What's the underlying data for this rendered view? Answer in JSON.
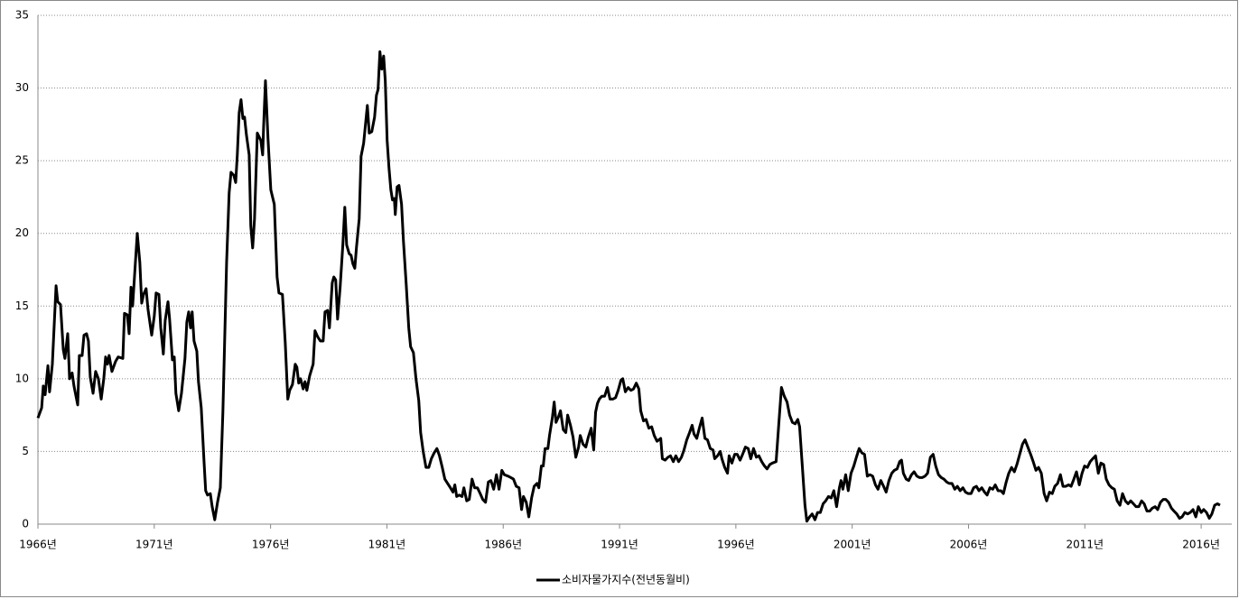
{
  "chart_data": {
    "type": "line",
    "x": [
      1966.0,
      1966.16,
      1966.23,
      1966.31,
      1966.43,
      1966.5,
      1966.62,
      1966.78,
      1966.85,
      1966.97,
      1967.09,
      1967.16,
      1967.28,
      1967.36,
      1967.47,
      1967.55,
      1967.71,
      1967.78,
      1967.9,
      1967.98,
      1968.09,
      1968.17,
      1968.25,
      1968.37,
      1968.48,
      1968.6,
      1968.72,
      1968.83,
      1968.91,
      1968.99,
      1969.06,
      1969.18,
      1969.34,
      1969.45,
      1969.65,
      1969.72,
      1969.84,
      1969.92,
      1970.0,
      1970.07,
      1970.15,
      1970.27,
      1970.38,
      1970.46,
      1970.54,
      1970.65,
      1970.73,
      1970.89,
      1971.0,
      1971.08,
      1971.2,
      1971.28,
      1971.39,
      1971.47,
      1971.59,
      1971.66,
      1971.78,
      1971.86,
      1971.93,
      1972.05,
      1972.17,
      1972.32,
      1972.4,
      1972.48,
      1972.56,
      1972.63,
      1972.71,
      1972.83,
      1972.9,
      1973.02,
      1973.14,
      1973.21,
      1973.29,
      1973.41,
      1973.49,
      1973.6,
      1973.72,
      1973.84,
      1973.95,
      1974.11,
      1974.22,
      1974.3,
      1974.42,
      1974.5,
      1974.57,
      1974.65,
      1974.73,
      1974.81,
      1974.88,
      1974.96,
      1975.08,
      1975.15,
      1975.23,
      1975.31,
      1975.43,
      1975.58,
      1975.66,
      1975.7,
      1975.78,
      1975.89,
      1976.01,
      1976.16,
      1976.28,
      1976.36,
      1976.51,
      1976.63,
      1976.74,
      1976.82,
      1976.94,
      1977.06,
      1977.13,
      1977.21,
      1977.29,
      1977.4,
      1977.48,
      1977.56,
      1977.68,
      1977.83,
      1977.91,
      1978.02,
      1978.14,
      1978.26,
      1978.34,
      1978.45,
      1978.53,
      1978.65,
      1978.72,
      1978.8,
      1978.88,
      1978.99,
      1979.11,
      1979.19,
      1979.27,
      1979.38,
      1979.46,
      1979.54,
      1979.62,
      1979.69,
      1979.81,
      1979.89,
      1980.0,
      1980.08,
      1980.16,
      1980.24,
      1980.35,
      1980.47,
      1980.55,
      1980.62,
      1980.7,
      1980.78,
      1980.86,
      1980.93,
      1981.01,
      1981.09,
      1981.17,
      1981.24,
      1981.32,
      1981.36,
      1981.44,
      1981.52,
      1981.63,
      1981.71,
      1981.83,
      1981.94,
      1982.02,
      1982.14,
      1982.25,
      1982.37,
      1982.45,
      1982.56,
      1982.68,
      1982.8,
      1982.91,
      1983.03,
      1983.15,
      1983.26,
      1983.38,
      1983.49,
      1983.61,
      1983.73,
      1983.84,
      1983.92,
      1984.0,
      1984.11,
      1984.23,
      1984.31,
      1984.43,
      1984.54,
      1984.66,
      1984.77,
      1984.89,
      1985.01,
      1985.12,
      1985.24,
      1985.36,
      1985.47,
      1985.59,
      1985.71,
      1985.82,
      1985.94,
      1986.05,
      1986.21,
      1986.33,
      1986.44,
      1986.56,
      1986.68,
      1986.79,
      1986.87,
      1986.99,
      1987.1,
      1987.22,
      1987.33,
      1987.45,
      1987.53,
      1987.64,
      1987.72,
      1987.8,
      1987.92,
      1987.99,
      1988.11,
      1988.19,
      1988.27,
      1988.38,
      1988.46,
      1988.58,
      1988.69,
      1988.77,
      1988.89,
      1989.0,
      1989.12,
      1989.24,
      1989.31,
      1989.43,
      1989.55,
      1989.66,
      1989.78,
      1989.89,
      1989.97,
      1990.05,
      1990.13,
      1990.24,
      1990.36,
      1990.48,
      1990.59,
      1990.71,
      1990.83,
      1990.94,
      1991.06,
      1991.14,
      1991.25,
      1991.37,
      1991.49,
      1991.6,
      1991.72,
      1991.83,
      1991.91,
      1992.03,
      1992.14,
      1992.26,
      1992.38,
      1992.49,
      1992.61,
      1992.77,
      1992.84,
      1992.96,
      1993.08,
      1993.19,
      1993.31,
      1993.42,
      1993.54,
      1993.66,
      1993.77,
      1993.89,
      1994.01,
      1994.12,
      1994.2,
      1994.32,
      1994.43,
      1994.55,
      1994.67,
      1994.78,
      1994.9,
      1995.02,
      1995.09,
      1995.21,
      1995.33,
      1995.4,
      1995.52,
      1995.64,
      1995.71,
      1995.83,
      1995.95,
      1996.06,
      1996.18,
      1996.29,
      1996.41,
      1996.53,
      1996.64,
      1996.76,
      1996.88,
      1996.99,
      1997.11,
      1997.23,
      1997.34,
      1997.46,
      1997.57,
      1997.73,
      1997.85,
      1997.96,
      1998.08,
      1998.2,
      1998.31,
      1998.43,
      1998.55,
      1998.66,
      1998.74,
      1998.86,
      1998.97,
      1999.05,
      1999.17,
      1999.28,
      1999.4,
      1999.51,
      1999.63,
      1999.75,
      1999.86,
      1999.98,
      2000.1,
      2000.21,
      2000.33,
      2000.45,
      2000.52,
      2000.6,
      2000.72,
      2000.83,
      2000.95,
      2001.07,
      2001.18,
      2001.3,
      2001.42,
      2001.53,
      2001.65,
      2001.76,
      2001.88,
      2002.0,
      2002.11,
      2002.23,
      2002.35,
      2002.46,
      2002.58,
      2002.7,
      2002.81,
      2002.93,
      2003.04,
      2003.12,
      2003.2,
      2003.32,
      2003.43,
      2003.55,
      2003.66,
      2003.78,
      2003.9,
      2004.01,
      2004.13,
      2004.24,
      2004.36,
      2004.48,
      2004.59,
      2004.71,
      2004.83,
      2004.94,
      2005.06,
      2005.17,
      2005.29,
      2005.41,
      2005.52,
      2005.64,
      2005.76,
      2005.87,
      2005.99,
      2006.11,
      2006.22,
      2006.34,
      2006.45,
      2006.57,
      2006.69,
      2006.8,
      2006.92,
      2007.04,
      2007.15,
      2007.27,
      2007.39,
      2007.5,
      2007.62,
      2007.73,
      2007.85,
      2007.97,
      2008.08,
      2008.2,
      2008.32,
      2008.43,
      2008.55,
      2008.67,
      2008.78,
      2008.9,
      2009.01,
      2009.13,
      2009.25,
      2009.36,
      2009.48,
      2009.6,
      2009.71,
      2009.83,
      2009.95,
      2010.06,
      2010.18,
      2010.3,
      2010.41,
      2010.53,
      2010.64,
      2010.76,
      2010.88,
      2010.99,
      2011.11,
      2011.23,
      2011.34,
      2011.46,
      2011.58,
      2011.69,
      2011.81,
      2011.92,
      2012.04,
      2012.16,
      2012.27,
      2012.39,
      2012.51,
      2012.62,
      2012.74,
      2012.86,
      2012.97,
      2013.09,
      2013.2,
      2013.32,
      2013.44,
      2013.55,
      2013.67,
      2013.79,
      2013.9,
      2014.02,
      2014.13,
      2014.25,
      2014.37,
      2014.48,
      2014.6,
      2014.72,
      2014.83,
      2014.95,
      2015.07,
      2015.18,
      2015.3,
      2015.42,
      2015.53,
      2015.65,
      2015.77,
      2015.88,
      2016.0,
      2016.11,
      2016.23,
      2016.35,
      2016.46,
      2016.58,
      2016.7,
      2016.81
    ],
    "series": [
      {
        "name": "소비자물가지수(전년동월비)",
        "color": "#000000",
        "values": [
          7.3,
          8,
          9.5,
          8.9,
          10.9,
          9.1,
          11,
          16.4,
          15.3,
          15.1,
          12,
          11.4,
          13.1,
          10,
          10.4,
          9.5,
          8.2,
          11.6,
          11.6,
          13,
          13.1,
          12.6,
          10.1,
          9,
          10.5,
          10,
          8.6,
          10,
          11.5,
          11,
          11.6,
          10.5,
          11.2,
          11.5,
          11.4,
          14.5,
          14.4,
          13.1,
          16.3,
          15,
          17,
          20,
          18,
          15.2,
          15.8,
          16.2,
          14.8,
          13,
          14.3,
          15.9,
          15.8,
          13.5,
          11.7,
          14,
          15.3,
          14.1,
          11.3,
          11.5,
          9,
          7.8,
          9,
          11.4,
          13.9,
          14.6,
          13.5,
          14.6,
          12.6,
          11.9,
          9.8,
          8,
          4.3,
          2.3,
          2,
          2.1,
          1.2,
          0.3,
          1.5,
          2.5,
          7.7,
          18,
          22.8,
          24.2,
          24,
          23.5,
          25.4,
          28.3,
          29.2,
          27.9,
          28,
          26.8,
          25.4,
          20.5,
          19,
          21,
          26.9,
          26.4,
          25.4,
          27.3,
          30.5,
          26.5,
          23,
          22,
          17,
          15.9,
          15.8,
          12.5,
          8.6,
          9.2,
          9.6,
          11,
          10.8,
          9.7,
          10,
          9.3,
          9.8,
          9.2,
          10.2,
          11,
          13.3,
          12.9,
          12.6,
          12.6,
          14.6,
          14.7,
          13.5,
          16.6,
          17,
          16.8,
          14.1,
          16.3,
          19.3,
          21.8,
          19.2,
          18.6,
          18.5,
          17.9,
          17.6,
          19,
          21,
          25.3,
          26.2,
          27.5,
          28.8,
          26.9,
          27,
          28,
          29.5,
          29.9,
          32.5,
          31.3,
          32.2,
          30.5,
          26.4,
          24.5,
          23,
          22.3,
          22.4,
          21.3,
          23.2,
          23.3,
          22,
          19.5,
          16.5,
          13.5,
          12.2,
          11.8,
          10,
          8.5,
          6.3,
          5,
          3.9,
          3.9,
          4.5,
          4.9,
          5.2,
          4.7,
          3.9,
          3.1,
          2.8,
          2.5,
          2.2,
          2.7,
          1.9,
          2,
          1.9,
          2.5,
          1.6,
          1.7,
          3.1,
          2.5,
          2.5,
          2.1,
          1.7,
          1.5,
          2.9,
          3,
          2.4,
          3.4,
          2.4,
          3.7,
          3.4,
          3.3,
          3.2,
          3.1,
          2.6,
          2.5,
          1,
          1.9,
          1.5,
          0.5,
          1.8,
          2.6,
          2.8,
          2.5,
          4,
          4,
          5.2,
          5.2,
          6.1,
          7.3,
          8.4,
          7,
          7.4,
          7.8,
          6.5,
          6.3,
          7.5,
          6.8,
          6,
          4.6,
          5.3,
          6.1,
          5.5,
          5.3,
          6,
          6.6,
          5.1,
          7.7,
          8.3,
          8.6,
          8.8,
          8.8,
          9.4,
          8.6,
          8.6,
          8.7,
          9.2,
          9.9,
          10,
          9.1,
          9.4,
          9.2,
          9.3,
          9.7,
          9.3,
          7.8,
          7.1,
          7.2,
          6.6,
          6.7,
          6.1,
          5.7,
          5.9,
          4.5,
          4.4,
          4.6,
          4.7,
          4.3,
          4.7,
          4.3,
          4.6,
          5.1,
          5.8,
          6.3,
          6.8,
          6.2,
          5.9,
          6.6,
          7.3,
          5.9,
          5.8,
          5.2,
          5.1,
          4.5,
          4.7,
          5,
          4.5,
          3.9,
          3.5,
          4.7,
          4.2,
          4.8,
          4.8,
          4.4,
          4.8,
          5.3,
          5.2,
          4.5,
          5.2,
          4.6,
          4.7,
          4.3,
          4,
          3.8,
          4.1,
          4.2,
          4.3,
          7,
          9.4,
          8.8,
          8.4,
          7.5,
          7,
          6.9,
          7.2,
          6.7,
          3.9,
          1.3,
          0.2,
          0.5,
          0.7,
          0.3,
          0.8,
          0.8,
          1.4,
          1.6,
          1.9,
          1.8,
          2.3,
          1.2,
          2.5,
          3,
          2.4,
          3.4,
          2.3,
          3.5,
          4,
          4.6,
          5.2,
          4.9,
          4.8,
          3.3,
          3.4,
          3.3,
          2.7,
          2.4,
          3,
          2.6,
          2.2,
          3,
          3.5,
          3.7,
          3.8,
          4.3,
          4.4,
          3.5,
          3.1,
          3,
          3.4,
          3.6,
          3.3,
          3.2,
          3.2,
          3.3,
          3.5,
          4.6,
          4.8,
          4,
          3.4,
          3.2,
          3.1,
          2.9,
          2.8,
          2.8,
          2.4,
          2.6,
          2.3,
          2.5,
          2.2,
          2.1,
          2.1,
          2.5,
          2.6,
          2.3,
          2.5,
          2.2,
          2,
          2.5,
          2.4,
          2.7,
          2.3,
          2.3,
          2.1,
          2.9,
          3.5,
          3.9,
          3.6,
          4.1,
          4.8,
          5.5,
          5.8,
          5.3,
          4.8,
          4.3,
          3.7,
          3.9,
          3.5,
          2.1,
          1.6,
          2.2,
          2.1,
          2.6,
          2.8,
          3.4,
          2.6,
          2.6,
          2.7,
          2.6,
          3.1,
          3.6,
          2.7,
          3.5,
          4,
          3.9,
          4.3,
          4.5,
          4.7,
          3.5,
          4.2,
          4.1,
          3.1,
          2.7,
          2.5,
          2.4,
          1.6,
          1.3,
          2.1,
          1.6,
          1.4,
          1.6,
          1.4,
          1.2,
          1.2,
          1.6,
          1.4,
          0.9,
          0.9,
          1.1,
          1.2,
          1,
          1.5,
          1.7,
          1.7,
          1.5,
          1.1,
          0.9,
          0.7,
          0.4,
          0.5,
          0.8,
          0.7,
          0.8,
          1,
          0.5,
          1.2,
          0.8,
          1,
          0.8,
          0.4,
          0.7,
          1.3,
          1.4,
          1.3
        ]
      }
    ],
    "xlim": [
      1966,
      2016.85
    ],
    "xticks": [
      {
        "value": 1966,
        "label": "1966년"
      },
      {
        "value": 1971,
        "label": "1971년"
      },
      {
        "value": 1976,
        "label": "1976년"
      },
      {
        "value": 1981,
        "label": "1981년"
      },
      {
        "value": 1986,
        "label": "1986년"
      },
      {
        "value": 1991,
        "label": "1991년"
      },
      {
        "value": 1996,
        "label": "1996년"
      },
      {
        "value": 2001,
        "label": "2001년"
      },
      {
        "value": 2006,
        "label": "2006년"
      },
      {
        "value": 2011,
        "label": "2011년"
      },
      {
        "value": 2016,
        "label": "2016년"
      }
    ],
    "ylim": [
      0,
      35
    ],
    "yticks": [
      0,
      5,
      10,
      15,
      20,
      25,
      30,
      35
    ],
    "grid": true,
    "legend": "bottom"
  }
}
